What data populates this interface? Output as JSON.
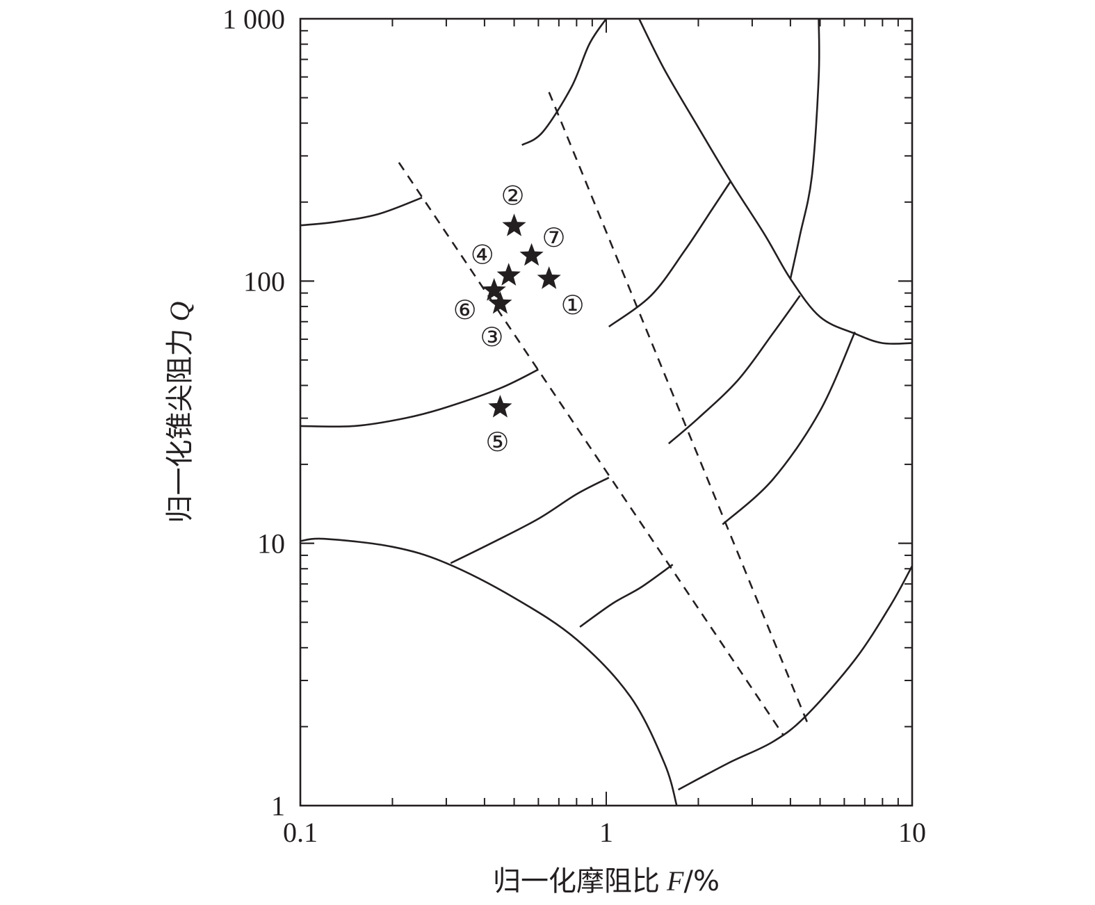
{
  "chart_data": {
    "type": "scatter",
    "title": "",
    "xlabel": "归一化摩阻比",
    "xlabel_var": "F",
    "xlabel_unit": "/%",
    "ylabel": "归一化锥尖阻力",
    "ylabel_var": "Q",
    "x_scale": "log",
    "y_scale": "log",
    "xlim": [
      0.1,
      10
    ],
    "ylim": [
      1,
      1000
    ],
    "x_ticks": [
      {
        "value": 0.1,
        "label": "0.1"
      },
      {
        "value": 1,
        "label": "1"
      },
      {
        "value": 10,
        "label": "10"
      }
    ],
    "y_ticks": [
      {
        "value": 1,
        "label": "1"
      },
      {
        "value": 10,
        "label": "10"
      },
      {
        "value": 100,
        "label": "100"
      },
      {
        "value": 1000,
        "label": "1 000"
      }
    ],
    "grid": false,
    "points": [
      {
        "label": "①",
        "x": 0.65,
        "y": 102
      },
      {
        "label": "②",
        "x": 0.5,
        "y": 162
      },
      {
        "label": "③",
        "x": 0.45,
        "y": 82
      },
      {
        "label": "④",
        "x": 0.48,
        "y": 105
      },
      {
        "label": "⑤",
        "x": 0.45,
        "y": 33
      },
      {
        "label": "⑥",
        "x": 0.43,
        "y": 92
      },
      {
        "label": "⑦",
        "x": 0.57,
        "y": 125
      }
    ],
    "boundaries": [
      [
        [
          0.1,
          10.2
        ],
        [
          0.12,
          10.4
        ],
        [
          0.2,
          9.7
        ],
        [
          0.3,
          8.4
        ],
        [
          0.5,
          6.2
        ],
        [
          0.8,
          4.3
        ],
        [
          1.2,
          2.6
        ],
        [
          1.55,
          1.45
        ],
        [
          1.7,
          1.0
        ]
      ],
      [
        [
          0.1,
          163
        ],
        [
          0.13,
          168
        ],
        [
          0.18,
          180
        ],
        [
          0.25,
          208
        ]
      ],
      [
        [
          0.1,
          28
        ],
        [
          0.15,
          28
        ],
        [
          0.22,
          30
        ],
        [
          0.3,
          33
        ],
        [
          0.45,
          39
        ],
        [
          0.6,
          46
        ]
      ],
      [
        [
          0.31,
          8.4
        ],
        [
          0.42,
          10
        ],
        [
          0.6,
          12.4
        ],
        [
          0.8,
          15.4
        ],
        [
          1.02,
          17.8
        ]
      ],
      [
        [
          0.53,
          330
        ],
        [
          0.62,
          370
        ],
        [
          0.77,
          550
        ],
        [
          0.88,
          800
        ],
        [
          1.0,
          1000
        ]
      ],
      [
        [
          0.82,
          4.8
        ],
        [
          1.05,
          5.9
        ],
        [
          1.3,
          6.8
        ],
        [
          1.65,
          8.3
        ]
      ],
      [
        [
          1.02,
          67
        ],
        [
          1.4,
          88
        ],
        [
          1.8,
          130
        ],
        [
          2.2,
          185
        ],
        [
          2.55,
          240
        ]
      ],
      [
        [
          1.6,
          24
        ],
        [
          2.0,
          30
        ],
        [
          2.7,
          42
        ],
        [
          3.5,
          63
        ],
        [
          4.3,
          88
        ]
      ],
      [
        [
          1.28,
          1000
        ],
        [
          1.55,
          640
        ],
        [
          2.0,
          385
        ],
        [
          2.55,
          240
        ],
        [
          3.3,
          150
        ],
        [
          4.0,
          102
        ],
        [
          5.0,
          73
        ],
        [
          6.5,
          63
        ],
        [
          8.0,
          58
        ],
        [
          10,
          58
        ]
      ],
      [
        [
          2.4,
          11.8
        ],
        [
          3.5,
          17.5
        ],
        [
          5.0,
          32
        ],
        [
          6.5,
          64
        ]
      ],
      [
        [
          1.72,
          1.15
        ],
        [
          2.5,
          1.45
        ],
        [
          3.5,
          1.75
        ],
        [
          4.5,
          2.2
        ],
        [
          6.5,
          3.6
        ],
        [
          8.5,
          5.8
        ],
        [
          10,
          8.2
        ]
      ],
      [
        [
          4.95,
          1000
        ],
        [
          4.95,
          600
        ],
        [
          4.7,
          250
        ],
        [
          4.3,
          150
        ],
        [
          4.0,
          102
        ]
      ]
    ],
    "dashed_lines": [
      [
        [
          0.21,
          283
        ],
        [
          3.8,
          1.85
        ]
      ],
      [
        [
          0.65,
          525
        ],
        [
          4.6,
          2.0
        ]
      ]
    ],
    "legend": "none"
  }
}
